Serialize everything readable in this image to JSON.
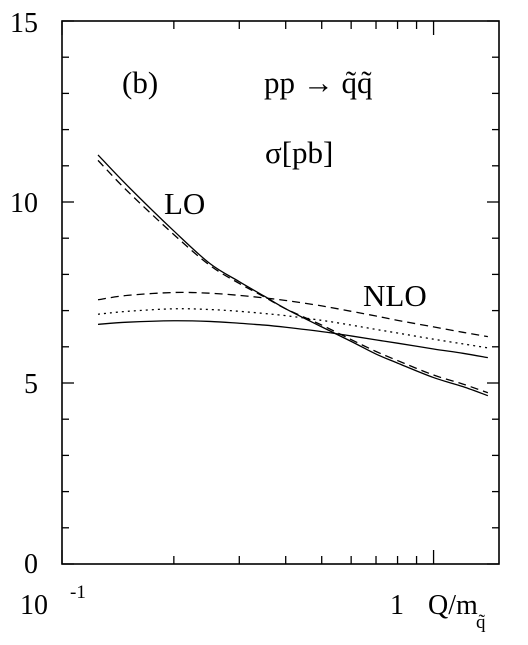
{
  "chart_data": {
    "type": "line",
    "title": "",
    "panel_label": "(b)",
    "process_label": "pp → q̃q̃",
    "quantity_label": "σ[pb]",
    "xlabel": "Q/m",
    "xlabel_subscript": "q̃",
    "ylabel": "",
    "xscale": "log",
    "xlim": [
      0.1,
      1.5
    ],
    "ylim": [
      0,
      15
    ],
    "grid": false,
    "x_tick_labels": [
      {
        "base": "10",
        "exp": "-1"
      },
      {
        "base": "1",
        "exp": ""
      }
    ],
    "y_tick_labels": [
      "0",
      "5",
      "10",
      "15"
    ],
    "curve_labels": [
      "LO",
      "NLO"
    ],
    "series": [
      {
        "group": "LO",
        "style": "solid",
        "x": [
          0.125,
          0.15,
          0.2,
          0.25,
          0.3,
          0.35,
          0.4,
          0.5,
          0.6,
          0.7,
          0.8,
          1.0,
          1.2,
          1.4
        ],
        "y": [
          11.3,
          10.45,
          9.2,
          8.3,
          7.8,
          7.4,
          7.05,
          6.55,
          6.15,
          5.8,
          5.55,
          5.15,
          4.9,
          4.65
        ]
      },
      {
        "group": "LO",
        "style": "dashed",
        "x": [
          0.125,
          0.15,
          0.2,
          0.25,
          0.3,
          0.35,
          0.4,
          0.5,
          0.6,
          0.7,
          0.8,
          1.0,
          1.2,
          1.4
        ],
        "y": [
          11.15,
          10.3,
          9.1,
          8.25,
          7.75,
          7.38,
          7.05,
          6.6,
          6.2,
          5.87,
          5.62,
          5.22,
          4.97,
          4.73
        ]
      },
      {
        "group": "NLO",
        "style": "dashed",
        "x": [
          0.125,
          0.15,
          0.2,
          0.25,
          0.3,
          0.35,
          0.4,
          0.5,
          0.6,
          0.7,
          0.8,
          1.0,
          1.2,
          1.4
        ],
        "y": [
          7.3,
          7.42,
          7.5,
          7.48,
          7.42,
          7.35,
          7.28,
          7.13,
          6.98,
          6.85,
          6.73,
          6.55,
          6.4,
          6.28
        ]
      },
      {
        "group": "NLO",
        "style": "dotted",
        "x": [
          0.125,
          0.15,
          0.2,
          0.25,
          0.3,
          0.35,
          0.4,
          0.5,
          0.6,
          0.7,
          0.8,
          1.0,
          1.2,
          1.4
        ],
        "y": [
          6.9,
          6.98,
          7.05,
          7.03,
          6.98,
          6.92,
          6.86,
          6.73,
          6.6,
          6.48,
          6.38,
          6.21,
          6.08,
          5.97
        ]
      },
      {
        "group": "NLO",
        "style": "solid",
        "x": [
          0.125,
          0.15,
          0.2,
          0.25,
          0.3,
          0.35,
          0.4,
          0.5,
          0.6,
          0.7,
          0.8,
          1.0,
          1.2,
          1.4
        ],
        "y": [
          6.62,
          6.68,
          6.72,
          6.7,
          6.65,
          6.6,
          6.54,
          6.42,
          6.3,
          6.19,
          6.1,
          5.94,
          5.82,
          5.7
        ]
      }
    ]
  }
}
